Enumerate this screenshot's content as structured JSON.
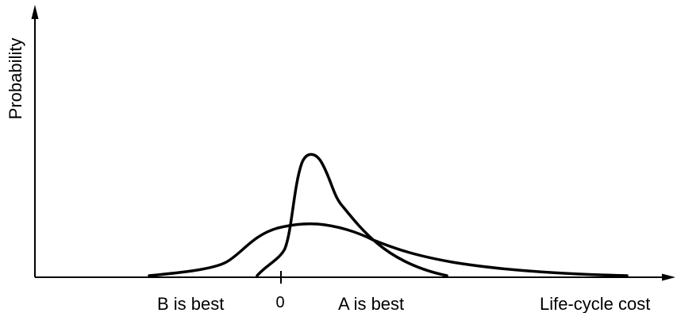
{
  "diagram": {
    "y_axis_label": "Probability",
    "x_axis_label": "Life-cycle cost",
    "zero_label": "0",
    "left_region_label": "B is best",
    "right_region_label": "A is best",
    "line_color": "#000000",
    "background_color": "#ffffff"
  }
}
